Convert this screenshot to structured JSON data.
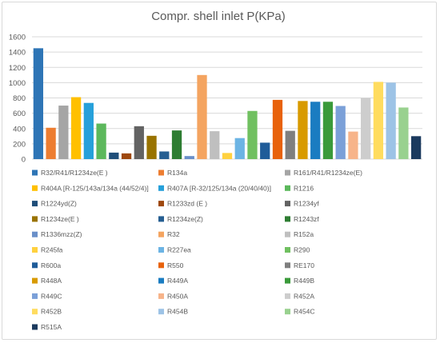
{
  "chart_data": {
    "type": "bar",
    "title": "Compr. shell inlet P(KPa)",
    "xlabel": "",
    "ylabel": "",
    "ylim": [
      0,
      1600
    ],
    "yticks": [
      0,
      200,
      400,
      600,
      800,
      1000,
      1200,
      1400,
      1600
    ],
    "grid": true,
    "legend_position": "bottom",
    "series": [
      {
        "name": "R32/R41/R1234ze(E )",
        "value": 1450,
        "color": "#2e75b6"
      },
      {
        "name": "R134a",
        "value": 410,
        "color": "#ed7d31"
      },
      {
        "name": "R161/R41/R1234ze(E)",
        "value": 700,
        "color": "#a5a5a5"
      },
      {
        "name": "R404A [R-125/143a/134a (44/52/4)]",
        "value": 810,
        "color": "#ffc000"
      },
      {
        "name": "R407A [R-32/125/134a (20/40/40)]",
        "value": 735,
        "color": "#26a0da"
      },
      {
        "name": "R1216",
        "value": 465,
        "color": "#5cb85c"
      },
      {
        "name": "R1224yd(Z)",
        "value": 85,
        "color": "#1f4e79"
      },
      {
        "name": "R1233zd (E )",
        "value": 75,
        "color": "#9e480e"
      },
      {
        "name": "R1234yf",
        "value": 430,
        "color": "#636363"
      },
      {
        "name": "R1234ze(E )",
        "value": 305,
        "color": "#997300"
      },
      {
        "name": "R1234ze(Z)",
        "value": 100,
        "color": "#255e91"
      },
      {
        "name": "R1243zf",
        "value": 375,
        "color": "#2e7d32"
      },
      {
        "name": "R1336mzz(Z)",
        "value": 40,
        "color": "#6a8fc9"
      },
      {
        "name": "R32",
        "value": 1100,
        "color": "#f4a460"
      },
      {
        "name": "R152a",
        "value": 365,
        "color": "#bfbfbf"
      },
      {
        "name": "R245fa",
        "value": 80,
        "color": "#ffd13f"
      },
      {
        "name": "R227ea",
        "value": 275,
        "color": "#6cb4e4"
      },
      {
        "name": "R290",
        "value": 630,
        "color": "#70c060"
      },
      {
        "name": "R600a",
        "value": 215,
        "color": "#1f5c99"
      },
      {
        "name": "R550",
        "value": 775,
        "color": "#e8620c"
      },
      {
        "name": "RE170",
        "value": 370,
        "color": "#7f7f7f"
      },
      {
        "name": "R448A",
        "value": 760,
        "color": "#d89a00"
      },
      {
        "name": "R449A",
        "value": 750,
        "color": "#1a7cc1"
      },
      {
        "name": "R449B",
        "value": 750,
        "color": "#3a9a3a"
      },
      {
        "name": "R449C",
        "value": 695,
        "color": "#7ba0d8"
      },
      {
        "name": "R450A",
        "value": 360,
        "color": "#f7b48a"
      },
      {
        "name": "R452A",
        "value": 800,
        "color": "#cdcdcd"
      },
      {
        "name": "R452B",
        "value": 1010,
        "color": "#ffdc5f"
      },
      {
        "name": "R454B",
        "value": 1000,
        "color": "#9dc3e6"
      },
      {
        "name": "R454C",
        "value": 675,
        "color": "#99d18f"
      },
      {
        "name": "R515A",
        "value": 300,
        "color": "#1b3a5e"
      }
    ]
  }
}
